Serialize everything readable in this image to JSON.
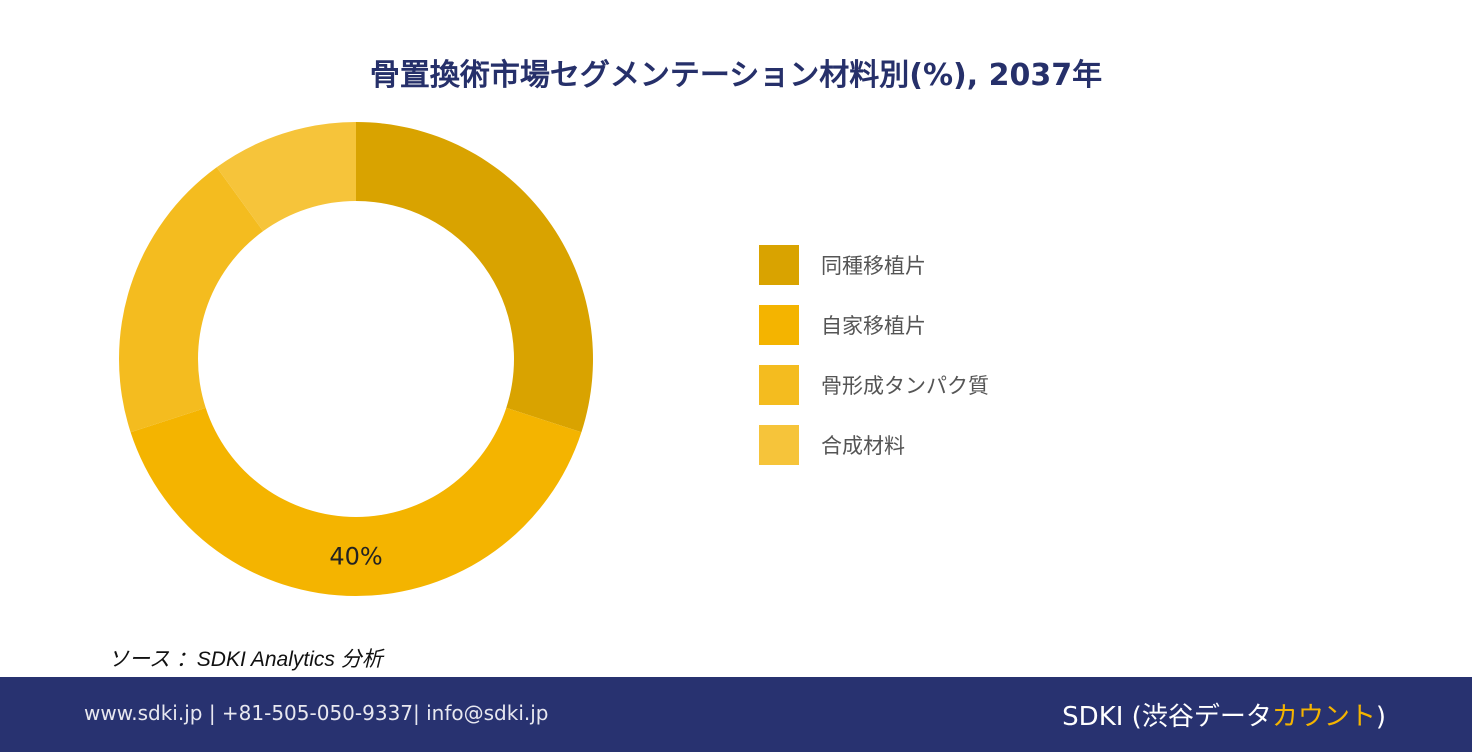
{
  "chart_data": {
    "type": "pie",
    "title": "骨置換術市場セグメンテーション材料別(%), 2037年",
    "categories": [
      "同種移植片",
      "自家移植片",
      "骨形成タンパク質",
      "合成材料"
    ],
    "values": [
      30,
      40,
      20,
      10
    ],
    "value_unit": "%",
    "data_labels": [
      {
        "category": "自家移植片",
        "text": "40%"
      }
    ],
    "donut": true,
    "start_angle_deg": 90,
    "direction": "clockwise",
    "legend_position": "right",
    "colors": [
      "#d9a300",
      "#f4b400",
      "#f4bc1f",
      "#f6c43a"
    ]
  },
  "source_text": "ソース ：SDKI Analytics 分析",
  "footer": {
    "contact": "www.sdki.jp | +81-505-050-9337| info@sdki.jp",
    "brand_prefix": "SDKI (渋谷データ",
    "brand_accent": "カウント",
    "brand_suffix": ")"
  }
}
